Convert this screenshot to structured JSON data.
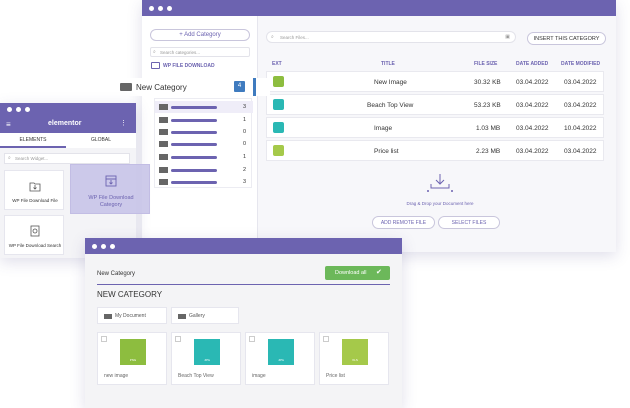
{
  "file_manager": {
    "add_category": "+ Add Category",
    "search_categories_placeholder": "Search categories...",
    "brand": "WP FILE DOWNLOAD",
    "search_files_placeholder": "Search Files...",
    "insert_button": "INSERT THIS CATEGORY",
    "columns": [
      "EXT",
      "TITLE",
      "FILE SIZE",
      "DATE ADDED",
      "DATE MODIFIED"
    ],
    "files": [
      {
        "title": "New Image",
        "size": "30.32 KB",
        "added": "03.04.2022",
        "modified": "03.04.2022",
        "color": "#8dbd3f"
      },
      {
        "title": "Beach Top View",
        "size": "53.23 KB",
        "added": "03.04.2022",
        "modified": "03.04.2022",
        "color": "#2ab8b4"
      },
      {
        "title": "Image",
        "size": "1.03 MB",
        "added": "03.04.2022",
        "modified": "10.04.2022",
        "color": "#2ab8b4"
      },
      {
        "title": "Price list",
        "size": "2.23 MB",
        "added": "03.04.2022",
        "modified": "03.04.2022",
        "color": "#a5c94a"
      }
    ],
    "drop_text": "Drag & Drop your Document here",
    "add_remote_file": "ADD REMOTE FILE",
    "select_files": "SELECT FILES"
  },
  "category_tree": {
    "root_label": "New Category",
    "root_count": "4",
    "children_counts": [
      "3",
      "1",
      "0",
      "0",
      "1",
      "2",
      "3"
    ]
  },
  "elementor": {
    "logo": "elementor",
    "tabs": [
      "ELEMENTS",
      "GLOBAL"
    ],
    "search_placeholder": "Search Widget...",
    "widgets": [
      "WP File Download File",
      "WP File Download Category",
      "WP File Download Search"
    ],
    "dragging_widget": "WP File Download Category"
  },
  "frontend": {
    "breadcrumb": "New Category",
    "download_all": "Download all",
    "heading": "NEW CATEGORY",
    "folders": [
      "My Document",
      "Gallery"
    ],
    "files": [
      {
        "name": "new image",
        "ext": "PNG",
        "color": "#8dbd3f"
      },
      {
        "name": "Beach Top View",
        "ext": "JPG",
        "color": "#2ab8b4"
      },
      {
        "name": "image",
        "ext": "JPG",
        "color": "#2ab8b4"
      },
      {
        "name": "Price list",
        "ext": "XLS",
        "color": "#a5c94a"
      }
    ]
  }
}
